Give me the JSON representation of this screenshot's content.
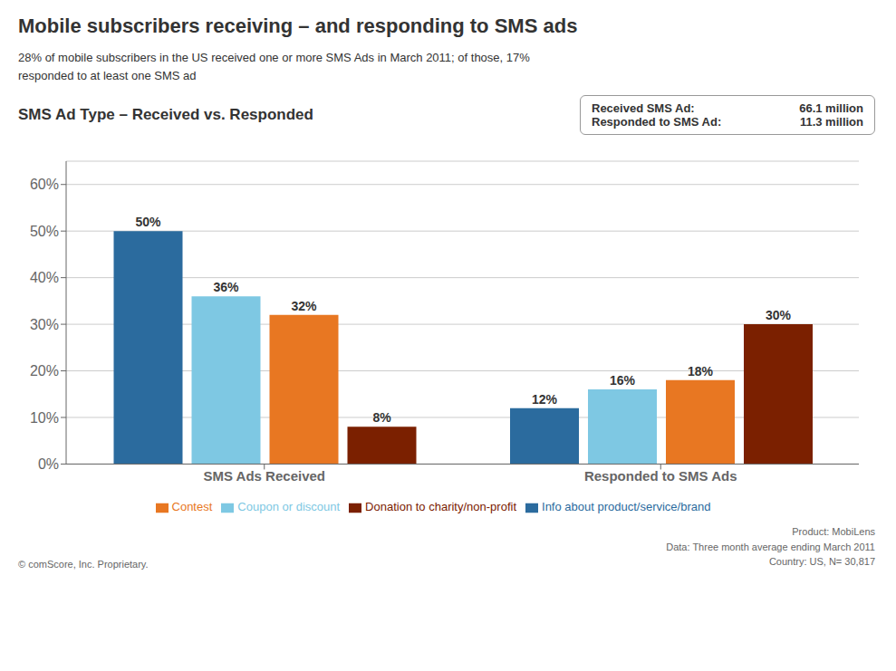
{
  "chart_data": {
    "type": "bar",
    "title": "SMS Ad Type – Received vs. Responded",
    "subtitle": "28% of mobile subscribers in the US received one or more SMS Ads in March 2011; of those, 17%\nresponded to at least one SMS ad",
    "annotations": [
      "Mobile subscribers receiving – and responding to SMS ads",
      "Received SMS Ad:",
      "66.1 million",
      "Responded to SMS Ad:",
      "11.3 million",
      "Product: MobiLens\nData: Three month average ending March 2011\nCountry: US, N= 30,817",
      "© comScore, Inc.   Proprietary."
    ],
    "categories": [
      "SMS Ads Received",
      "Responded to SMS Ads"
    ],
    "series": [
      {
        "name": "Info about product/service/brand",
        "color": "#2b6b9e",
        "values": [
          50,
          12
        ],
        "value_labels": [
          "50%",
          "12%"
        ]
      },
      {
        "name": "Coupon or discount",
        "color": "#7ec8e3",
        "values": [
          36,
          16
        ],
        "value_labels": [
          "36%",
          "16%"
        ]
      },
      {
        "name": "Contest",
        "color": "#e87722",
        "values": [
          32,
          18
        ],
        "value_labels": [
          "32%",
          "18%"
        ]
      },
      {
        "name": "Donation to charity/non-profit",
        "color": "#7b2000",
        "values": [
          8,
          30
        ],
        "value_labels": [
          "8%",
          "30%"
        ]
      }
    ],
    "ylim": [
      0,
      65
    ],
    "yticks": [
      {
        "value": 0,
        "label": "0%"
      },
      {
        "value": 10,
        "label": "10%"
      },
      {
        "value": 20,
        "label": "20%"
      },
      {
        "value": 30,
        "label": "30%"
      },
      {
        "value": 40,
        "label": "40%"
      },
      {
        "value": 50,
        "label": "50%"
      },
      {
        "value": 60,
        "label": "60%"
      }
    ],
    "grid": true,
    "legend": "bottom",
    "data_labels": true
  }
}
